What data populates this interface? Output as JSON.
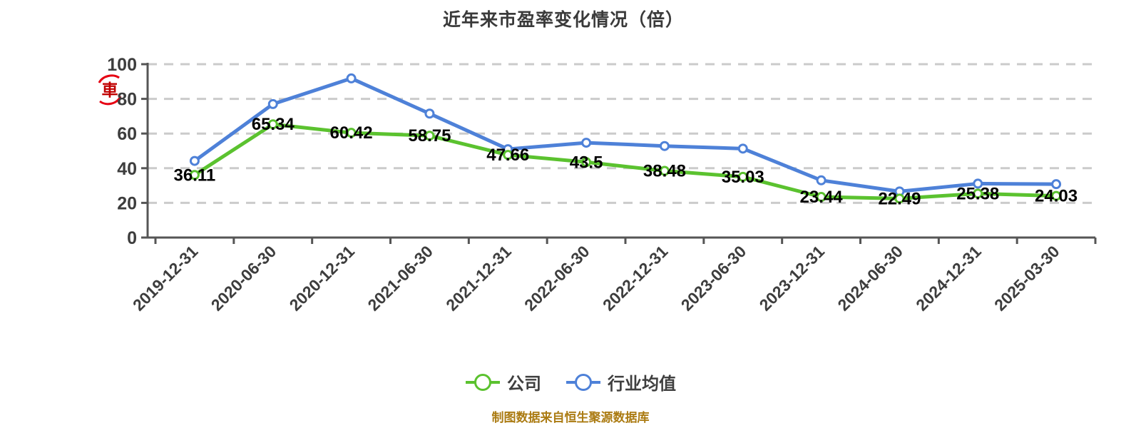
{
  "watermark": {
    "glyph": "車"
  },
  "chart_data": {
    "type": "line",
    "title": "近年来市盈率变化情况（倍）",
    "categories": [
      "2019-12-31",
      "2020-06-30",
      "2020-12-31",
      "2021-06-30",
      "2021-12-31",
      "2022-06-30",
      "2022-12-31",
      "2023-06-30",
      "2023-12-31",
      "2024-06-30",
      "2024-12-31",
      "2025-03-30"
    ],
    "series": [
      {
        "key": "company",
        "name": "公司",
        "color": "#5bc22f",
        "show_labels": true,
        "values": [
          36.11,
          65.34,
          60.42,
          58.75,
          47.66,
          43.5,
          38.48,
          35.03,
          23.44,
          22.49,
          25.38,
          24.03
        ]
      },
      {
        "key": "industry-average",
        "name": "行业均值",
        "color": "#4e81d8",
        "show_labels": false,
        "values": [
          44.2,
          77.0,
          91.8,
          71.5,
          51.0,
          54.7,
          52.8,
          51.3,
          33.0,
          26.6,
          31.1,
          30.8
        ]
      }
    ],
    "xlabel": "",
    "ylabel": "",
    "ylim": [
      0,
      100
    ],
    "y_ticks": [
      0,
      20,
      40,
      60,
      80,
      100
    ],
    "grid": "horizontal-dashed",
    "legend_position": "bottom",
    "marker_style": "white-filled-circle",
    "colors": {
      "grid_line": "#cbcbcb",
      "axis_line": "#555555",
      "tick_label": "#3d3d3d",
      "data_label": "#000000",
      "watermark_red": "#e60012"
    }
  },
  "footer": {
    "source_note": "制图数据来自恒生聚源数据库",
    "color": "#ab7b12"
  }
}
